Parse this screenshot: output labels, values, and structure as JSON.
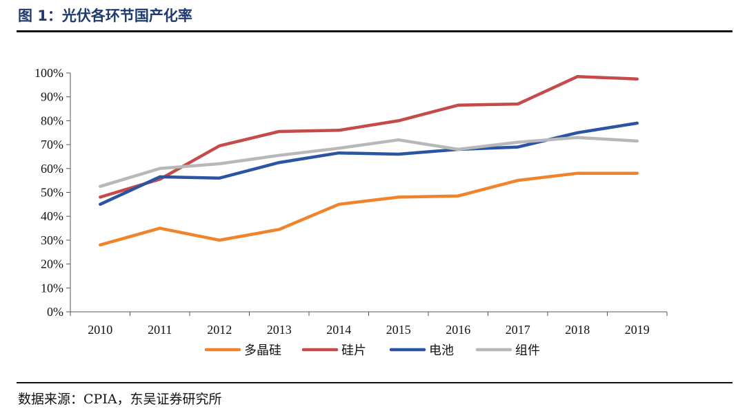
{
  "header": {
    "title": "图 1：光伏各环节国产化率"
  },
  "source": {
    "text": "数据来源：CPIA，东吴证券研究所"
  },
  "chart_data": {
    "type": "line",
    "x": [
      "2010",
      "2011",
      "2012",
      "2013",
      "2014",
      "2015",
      "2016",
      "2017",
      "2018",
      "2019"
    ],
    "yticks": [
      "0%",
      "10%",
      "20%",
      "30%",
      "40%",
      "50%",
      "60%",
      "70%",
      "80%",
      "90%",
      "100%"
    ],
    "ylim": [
      0,
      100
    ],
    "grid": false,
    "legend_position": "bottom",
    "series": [
      {
        "name": "多晶硅",
        "color": "#f0842c",
        "values": [
          28,
          35,
          30,
          34.5,
          45,
          48,
          48.5,
          55,
          58,
          58
        ]
      },
      {
        "name": "硅片",
        "color": "#c54b4b",
        "values": [
          48,
          55.5,
          69.5,
          75.5,
          76,
          80,
          86.5,
          87,
          98.5,
          97.5
        ]
      },
      {
        "name": "电池",
        "color": "#2b55a3",
        "values": [
          45,
          56.5,
          56,
          62.5,
          66.5,
          66,
          68,
          69,
          75,
          79
        ]
      },
      {
        "name": "组件",
        "color": "#b8b8b8",
        "values": [
          52.5,
          60,
          62,
          65.5,
          68.5,
          72,
          68,
          71,
          73,
          71.5
        ]
      }
    ]
  }
}
